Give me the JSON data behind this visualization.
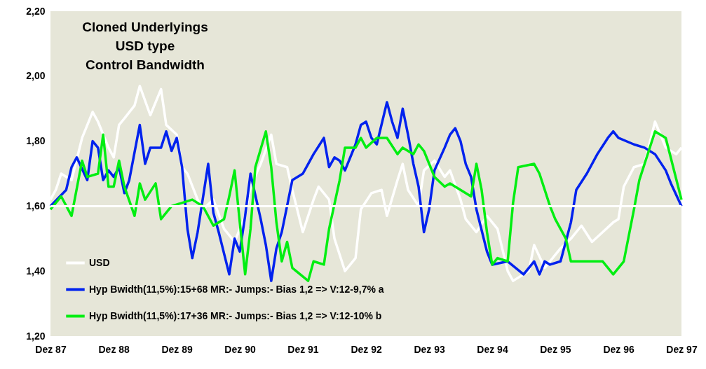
{
  "chart_data": {
    "type": "line",
    "title": "Cloned Underlyings\nUSD type\nControl Bandwidth",
    "xlim": [
      "1987-12",
      "1997-12"
    ],
    "xticks": [
      {
        "value": "1987-12",
        "label": "Dez 87"
      },
      {
        "value": "1988-12",
        "label": "Dez 88"
      },
      {
        "value": "1989-12",
        "label": "Dez 89"
      },
      {
        "value": "1990-12",
        "label": "Dez 90"
      },
      {
        "value": "1991-12",
        "label": "Dez 91"
      },
      {
        "value": "1992-12",
        "label": "Dez 92"
      },
      {
        "value": "1993-12",
        "label": "Dez 93"
      },
      {
        "value": "1994-12",
        "label": "Dez 94"
      },
      {
        "value": "1995-12",
        "label": "Dez 95"
      },
      {
        "value": "1996-12",
        "label": "Dez 96"
      },
      {
        "value": "1997-12",
        "label": "Dez 97"
      }
    ],
    "ylim": [
      1.2,
      2.2
    ],
    "yticks": [
      {
        "value": 1.2,
        "label": "1,20"
      },
      {
        "value": 1.4,
        "label": "1,40"
      },
      {
        "value": 1.6,
        "label": "1,60"
      },
      {
        "value": 1.8,
        "label": "1,80"
      },
      {
        "value": 2.0,
        "label": "2,00"
      },
      {
        "value": 2.2,
        "label": "2,20"
      }
    ],
    "grid": false,
    "legend": "bottom left",
    "ref_lines": [
      {
        "axis": "y",
        "value": 1.6,
        "color": "#ffffff"
      }
    ],
    "series": [
      {
        "name": "USD",
        "color": "#ffffff",
        "x": [
          "1987-12",
          "1988-01",
          "1988-02",
          "1988-04",
          "1988-06",
          "1988-08",
          "1988-09",
          "1988-11",
          "1988-12",
          "1989-01",
          "1989-02",
          "1989-04",
          "1989-05",
          "1989-07",
          "1989-09",
          "1989-10",
          "1989-12",
          "1990-01",
          "1990-02",
          "1990-04",
          "1990-05",
          "1990-07",
          "1990-09",
          "1990-11",
          "1991-01",
          "1991-02",
          "1991-04",
          "1991-06",
          "1991-07",
          "1991-09",
          "1991-10",
          "1991-12",
          "1992-02",
          "1992-03",
          "1992-05",
          "1992-06",
          "1992-08",
          "1992-10",
          "1992-11",
          "1993-01",
          "1993-03",
          "1993-04",
          "1993-06",
          "1993-07",
          "1993-08",
          "1993-10",
          "1993-11",
          "1994-01",
          "1994-03",
          "1994-04",
          "1994-06",
          "1994-07",
          "1994-09",
          "1994-11",
          "1995-01",
          "1995-03",
          "1995-04",
          "1995-07",
          "1995-08",
          "1995-10",
          "1996-01",
          "1996-03",
          "1996-05",
          "1996-07",
          "1996-09",
          "1996-11",
          "1996-12",
          "1997-01",
          "1997-03",
          "1997-05",
          "1997-07",
          "1997-09",
          "1997-11",
          "1997-12"
        ],
        "values": [
          1.62,
          1.65,
          1.7,
          1.68,
          1.81,
          1.89,
          1.86,
          1.78,
          1.75,
          1.85,
          1.87,
          1.91,
          1.97,
          1.88,
          1.96,
          1.85,
          1.82,
          1.72,
          1.7,
          1.62,
          1.59,
          1.62,
          1.53,
          1.49,
          1.57,
          1.66,
          1.73,
          1.82,
          1.73,
          1.72,
          1.65,
          1.52,
          1.62,
          1.66,
          1.62,
          1.5,
          1.4,
          1.44,
          1.59,
          1.64,
          1.65,
          1.57,
          1.68,
          1.73,
          1.65,
          1.6,
          1.71,
          1.74,
          1.69,
          1.71,
          1.62,
          1.56,
          1.52,
          1.57,
          1.53,
          1.4,
          1.37,
          1.4,
          1.48,
          1.41,
          1.47,
          1.5,
          1.54,
          1.49,
          1.52,
          1.55,
          1.56,
          1.66,
          1.72,
          1.73,
          1.86,
          1.78,
          1.76,
          1.78
        ]
      },
      {
        "name": "Hyp Bwidth(11,5%):15+68 MR:- Jumps:- Bias 1,2 => V:12-9,7% a",
        "color": "#0022ee",
        "x": [
          "1987-12",
          "1988-03",
          "1988-04",
          "1988-05",
          "1988-07",
          "1988-08",
          "1988-09",
          "1988-10",
          "1988-11",
          "1988-12",
          "1989-01",
          "1989-02",
          "1989-03",
          "1989-05",
          "1989-06",
          "1989-07",
          "1989-09",
          "1989-10",
          "1989-11",
          "1989-12",
          "1990-01",
          "1990-02",
          "1990-03",
          "1990-04",
          "1990-06",
          "1990-07",
          "1990-08",
          "1990-10",
          "1990-11",
          "1990-12",
          "1991-01",
          "1991-02",
          "1991-04",
          "1991-05",
          "1991-06",
          "1991-07",
          "1991-08",
          "1991-10",
          "1991-12",
          "1992-01",
          "1992-02",
          "1992-04",
          "1992-05",
          "1992-06",
          "1992-07",
          "1992-08",
          "1992-10",
          "1992-11",
          "1992-12",
          "1993-01",
          "1993-02",
          "1993-04",
          "1993-05",
          "1993-06",
          "1993-07",
          "1993-08",
          "1993-09",
          "1993-10",
          "1993-11",
          "1993-12",
          "1994-01",
          "1994-03",
          "1994-04",
          "1994-05",
          "1994-06",
          "1994-07",
          "1994-08",
          "1994-09",
          "1994-11",
          "1994-12",
          "1995-03",
          "1995-06",
          "1995-08",
          "1995-09",
          "1995-10",
          "1995-11",
          "1996-01",
          "1996-03",
          "1996-04",
          "1996-06",
          "1996-08",
          "1996-10",
          "1996-11",
          "1996-12",
          "1997-03",
          "1997-05",
          "1997-07",
          "1997-09",
          "1997-10",
          "1997-12"
        ],
        "values": [
          1.6,
          1.65,
          1.72,
          1.75,
          1.68,
          1.8,
          1.78,
          1.68,
          1.71,
          1.69,
          1.72,
          1.64,
          1.68,
          1.85,
          1.73,
          1.78,
          1.78,
          1.83,
          1.77,
          1.81,
          1.72,
          1.53,
          1.44,
          1.52,
          1.73,
          1.58,
          1.52,
          1.39,
          1.5,
          1.46,
          1.57,
          1.7,
          1.56,
          1.48,
          1.37,
          1.47,
          1.52,
          1.68,
          1.7,
          1.73,
          1.76,
          1.81,
          1.72,
          1.75,
          1.74,
          1.71,
          1.79,
          1.85,
          1.86,
          1.81,
          1.79,
          1.92,
          1.86,
          1.81,
          1.9,
          1.82,
          1.73,
          1.66,
          1.52,
          1.59,
          1.71,
          1.78,
          1.82,
          1.84,
          1.8,
          1.73,
          1.69,
          1.59,
          1.46,
          1.42,
          1.43,
          1.39,
          1.43,
          1.39,
          1.43,
          1.42,
          1.43,
          1.55,
          1.65,
          1.7,
          1.76,
          1.81,
          1.83,
          1.81,
          1.79,
          1.78,
          1.76,
          1.71,
          1.67,
          1.6
        ]
      },
      {
        "name": "Hyp Bwidth(11,5%):17+36 MR:- Jumps:- Bias 1,2 => V:12-10% b",
        "color": "#00ee11",
        "x": [
          "1987-12",
          "1988-02",
          "1988-04",
          "1988-06",
          "1988-07",
          "1988-09",
          "1988-10",
          "1988-11",
          "1988-12",
          "1989-01",
          "1989-02",
          "1989-04",
          "1989-05",
          "1989-06",
          "1989-08",
          "1989-09",
          "1989-11",
          "1990-03",
          "1990-05",
          "1990-07",
          "1990-09",
          "1990-10",
          "1990-11",
          "1990-12",
          "1991-01",
          "1991-02",
          "1991-03",
          "1991-05",
          "1991-06",
          "1991-07",
          "1991-08",
          "1991-09",
          "1991-10",
          "1992-01",
          "1992-02",
          "1992-04",
          "1992-05",
          "1992-07",
          "1992-08",
          "1992-10",
          "1992-11",
          "1992-12",
          "1993-02",
          "1993-04",
          "1993-06",
          "1993-07",
          "1993-09",
          "1993-10",
          "1993-11",
          "1994-01",
          "1994-03",
          "1994-04",
          "1994-06",
          "1994-08",
          "1994-09",
          "1994-10",
          "1994-11",
          "1994-12",
          "1995-01",
          "1995-03",
          "1995-04",
          "1995-05",
          "1995-08",
          "1995-09",
          "1995-11",
          "1995-12",
          "1996-02",
          "1996-03",
          "1996-06",
          "1996-09",
          "1996-11",
          "1997-01",
          "1997-03",
          "1997-04",
          "1997-07",
          "1997-09",
          "1997-12"
        ],
        "values": [
          1.59,
          1.63,
          1.57,
          1.74,
          1.69,
          1.7,
          1.82,
          1.66,
          1.66,
          1.74,
          1.66,
          1.57,
          1.67,
          1.62,
          1.67,
          1.56,
          1.6,
          1.62,
          1.6,
          1.54,
          1.56,
          1.63,
          1.71,
          1.55,
          1.39,
          1.53,
          1.72,
          1.83,
          1.72,
          1.55,
          1.43,
          1.49,
          1.41,
          1.37,
          1.43,
          1.42,
          1.53,
          1.68,
          1.78,
          1.78,
          1.81,
          1.78,
          1.81,
          1.81,
          1.76,
          1.78,
          1.76,
          1.79,
          1.77,
          1.69,
          1.66,
          1.67,
          1.65,
          1.63,
          1.73,
          1.65,
          1.52,
          1.42,
          1.44,
          1.43,
          1.61,
          1.72,
          1.73,
          1.7,
          1.6,
          1.56,
          1.5,
          1.43,
          1.43,
          1.43,
          1.39,
          1.43,
          1.59,
          1.68,
          1.83,
          1.81,
          1.62
        ]
      }
    ]
  }
}
